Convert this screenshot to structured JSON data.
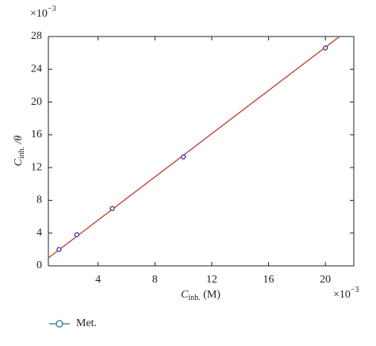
{
  "chart_data": {
    "type": "scatter",
    "x_label": {
      "main": "C",
      "sub": "inh.",
      "rest": " (M)"
    },
    "y_label": {
      "main": "C",
      "sub": "inh.",
      "rest": " /θ"
    },
    "x_multiplier": {
      "base": "×10",
      "exponent": "−3"
    },
    "y_multiplier": {
      "base": "×10",
      "exponent": "−3"
    },
    "series": [
      {
        "name": "Met.",
        "color": "#3b2fa8",
        "legend_color": "#2a6f97",
        "x": [
          1.25,
          2.5,
          5,
          10,
          20
        ],
        "values": [
          2.0,
          3.8,
          7.0,
          13.3,
          26.6
        ]
      }
    ],
    "fit_line": {
      "color": "#c0392b",
      "x": [
        0.5,
        21.0
      ],
      "values": [
        0.97,
        28
      ]
    },
    "xlim": [
      0.5,
      22
    ],
    "xticks": [
      4,
      8,
      12,
      16,
      20
    ],
    "ylim": [
      0,
      28
    ],
    "yticks": [
      0,
      4,
      8,
      12,
      16,
      20,
      24,
      28
    ],
    "grid": false
  }
}
